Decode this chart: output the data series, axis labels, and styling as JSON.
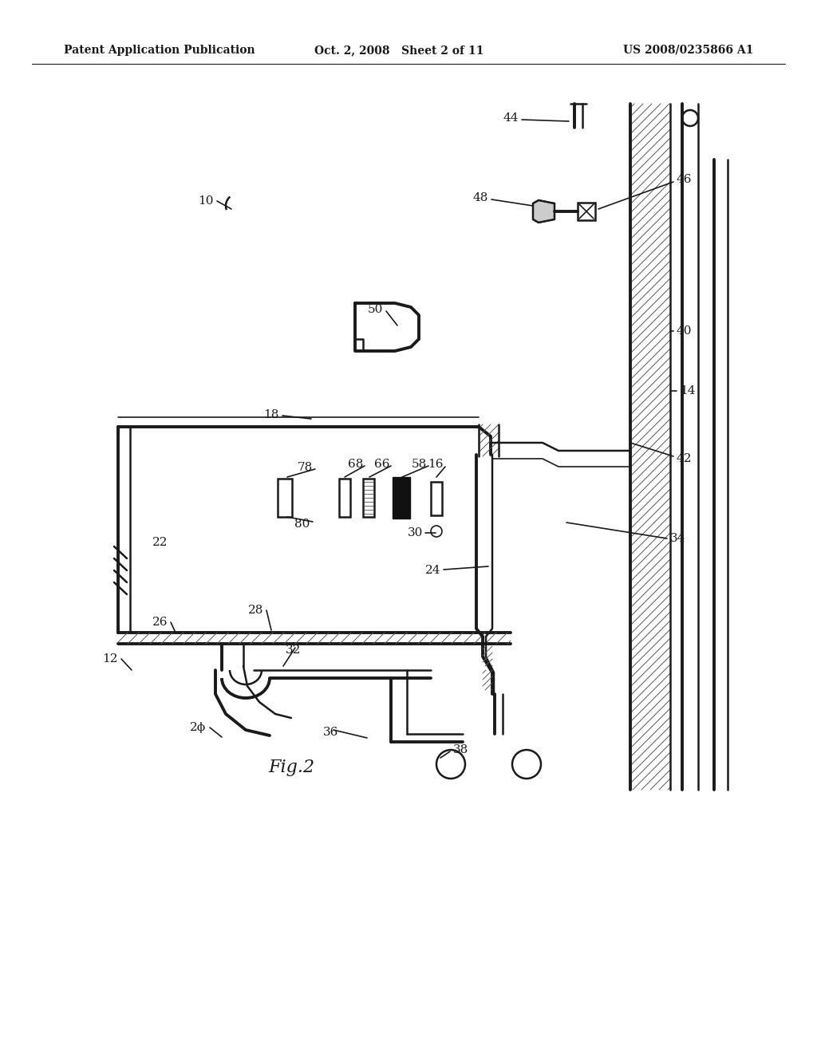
{
  "header_left": "Patent Application Publication",
  "header_center": "Oct. 2, 2008   Sheet 2 of 11",
  "header_right": "US 2008/0235866 A1",
  "fig_label": "Fig.2",
  "bg": "#ffffff",
  "lc": "#1a1a1a"
}
